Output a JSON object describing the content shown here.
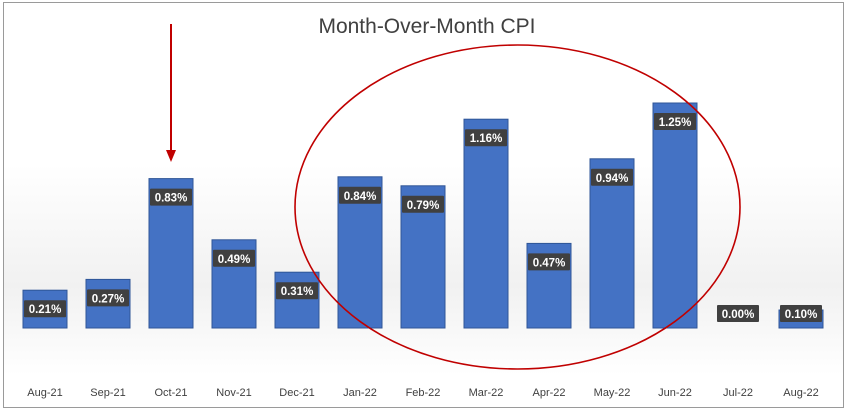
{
  "chart_data": {
    "type": "bar",
    "title": "Month-Over-Month CPI",
    "categories": [
      "Aug-21",
      "Sep-21",
      "Oct-21",
      "Nov-21",
      "Dec-21",
      "Jan-22",
      "Feb-22",
      "Mar-22",
      "Apr-22",
      "May-22",
      "Jun-22",
      "Jul-22",
      "Aug-22"
    ],
    "values": [
      0.21,
      0.27,
      0.83,
      0.49,
      0.31,
      0.84,
      0.79,
      1.16,
      0.47,
      0.94,
      1.25,
      0.0,
      0.1
    ],
    "data_labels": [
      "0.21%",
      "0.27%",
      "0.83%",
      "0.49%",
      "0.31%",
      "0.84%",
      "0.79%",
      "1.16%",
      "0.47%",
      "0.94%",
      "1.25%",
      "0.00%",
      "0.10%"
    ],
    "xlabel": "",
    "ylabel": "",
    "ylim": [
      0,
      1.4
    ],
    "grid": false,
    "legend": "none",
    "annotations": {
      "arrow_target": "Oct-21",
      "ellipse_range": [
        "Jan-22",
        "Jun-22"
      ]
    }
  },
  "colors": {
    "bar": "#4472c4",
    "bar_dark": "#2f5597",
    "label_box": "#404040",
    "annotation": "#c00000",
    "text": "#404040"
  }
}
